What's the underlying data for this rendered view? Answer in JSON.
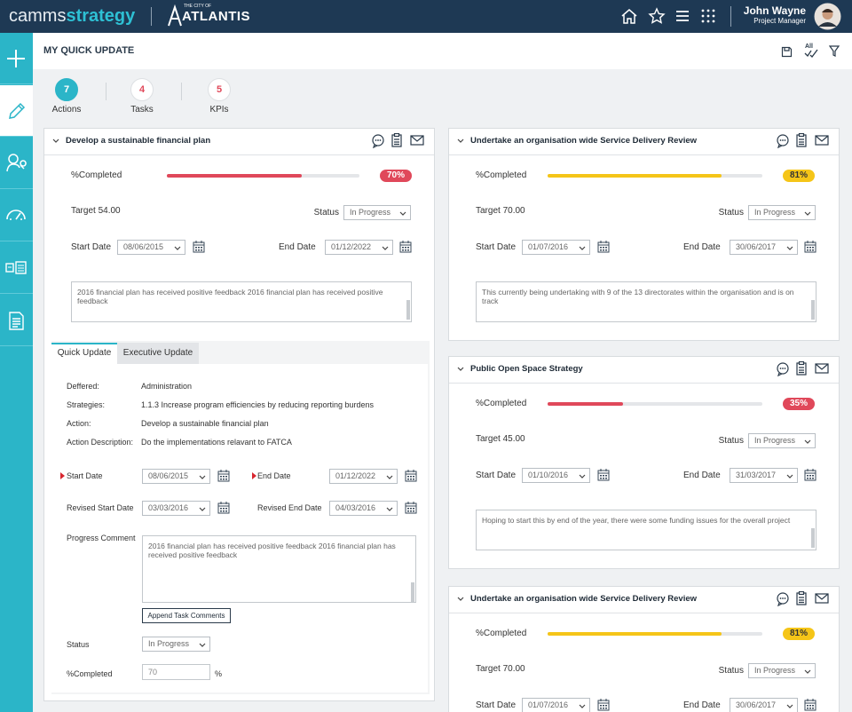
{
  "header": {
    "brand_a": "camms",
    "brand_b": "strategy",
    "city_small": "THE CITY OF",
    "city": "ATLANTIS",
    "user_name": "John Wayne",
    "user_role": "Project Manager"
  },
  "page_title": "MY QUICK UPDATE",
  "toolbar": {
    "all_label": "All"
  },
  "summary_tabs": [
    {
      "count": 7,
      "label": "Actions"
    },
    {
      "count": 4,
      "label": "Tasks"
    },
    {
      "count": 5,
      "label": "KPIs"
    }
  ],
  "cards": [
    {
      "title": "Develop a sustainable financial plan",
      "completed_label": "%Completed",
      "percent": 70,
      "percent_label": "70%",
      "color": "#e0485a",
      "target": "Target 54.00",
      "status_label": "Status",
      "status": "In Progress",
      "start_label": "Start Date",
      "start": "08/06/2015",
      "end_label": "End Date",
      "end": "01/12/2022",
      "comment": "2016 financial plan has received positive feedback 2016 financial plan has received positive feedback",
      "detail": {
        "tabs": [
          "Quick Update",
          "Executive Update"
        ],
        "fields": [
          {
            "label": "Deffered:",
            "value": "Administration"
          },
          {
            "label": "Strategies:",
            "value": "1.1.3 Increase program efficiencies by reducing reporting burdens"
          },
          {
            "label": "Action:",
            "value": "Develop a sustainable financial plan"
          },
          {
            "label": "Action Description:",
            "value": "Do the implementations relavant to FATCA"
          }
        ],
        "start_label": "Start Date",
        "start": "08/06/2015",
        "end_label": "End Date",
        "end": "01/12/2022",
        "revised_start_label": "Revised Start Date",
        "revised_start": "03/03/2016",
        "revised_end_label": "Revised End Date",
        "revised_end": "04/03/2016",
        "comment_label": "Progress Comment",
        "comment": "2016 financial plan has received positive feedback 2016 financial plan has received positive feedback",
        "button": "Append Task Comments",
        "status_label": "Status",
        "status": "In Progress",
        "completed_label": "%Completed",
        "completed": 70,
        "unit": "%"
      }
    },
    {
      "title": "Undertake an organisation wide Service Delivery Review",
      "completed_label": "%Completed",
      "percent": 81,
      "percent_label": "81%",
      "color": "#f5c518",
      "target": "Target 70.00",
      "status_label": "Status",
      "status": "In Progress",
      "start_label": "Start Date",
      "start": "01/07/2016",
      "end_label": "End Date",
      "end": "30/06/2017",
      "comment": "This currently being undertaking with 9 of the 13 directorates within the organisation and is on track"
    },
    {
      "title": "Public Open Space Strategy",
      "completed_label": "%Completed",
      "percent": 35,
      "percent_label": "35%",
      "color": "#e0485a",
      "target": "Target 45.00",
      "status_label": "Status",
      "status": "In Progress",
      "start_label": "Start Date",
      "start": "01/10/2016",
      "end_label": "End Date",
      "end": "31/03/2017",
      "comment": "Hoping to start this by end of the year, there were some funding issues for the overall project"
    },
    {
      "title": "Undertake an organisation wide Service Delivery Review",
      "completed_label": "%Completed",
      "percent": 81,
      "percent_label": "81%",
      "color": "#f5c518",
      "target": "Target 70.00",
      "status_label": "Status",
      "status": "In Progress",
      "start_label": "Start Date",
      "start": "01/07/2016",
      "end_label": "End Date",
      "end": "30/06/2017"
    }
  ]
}
